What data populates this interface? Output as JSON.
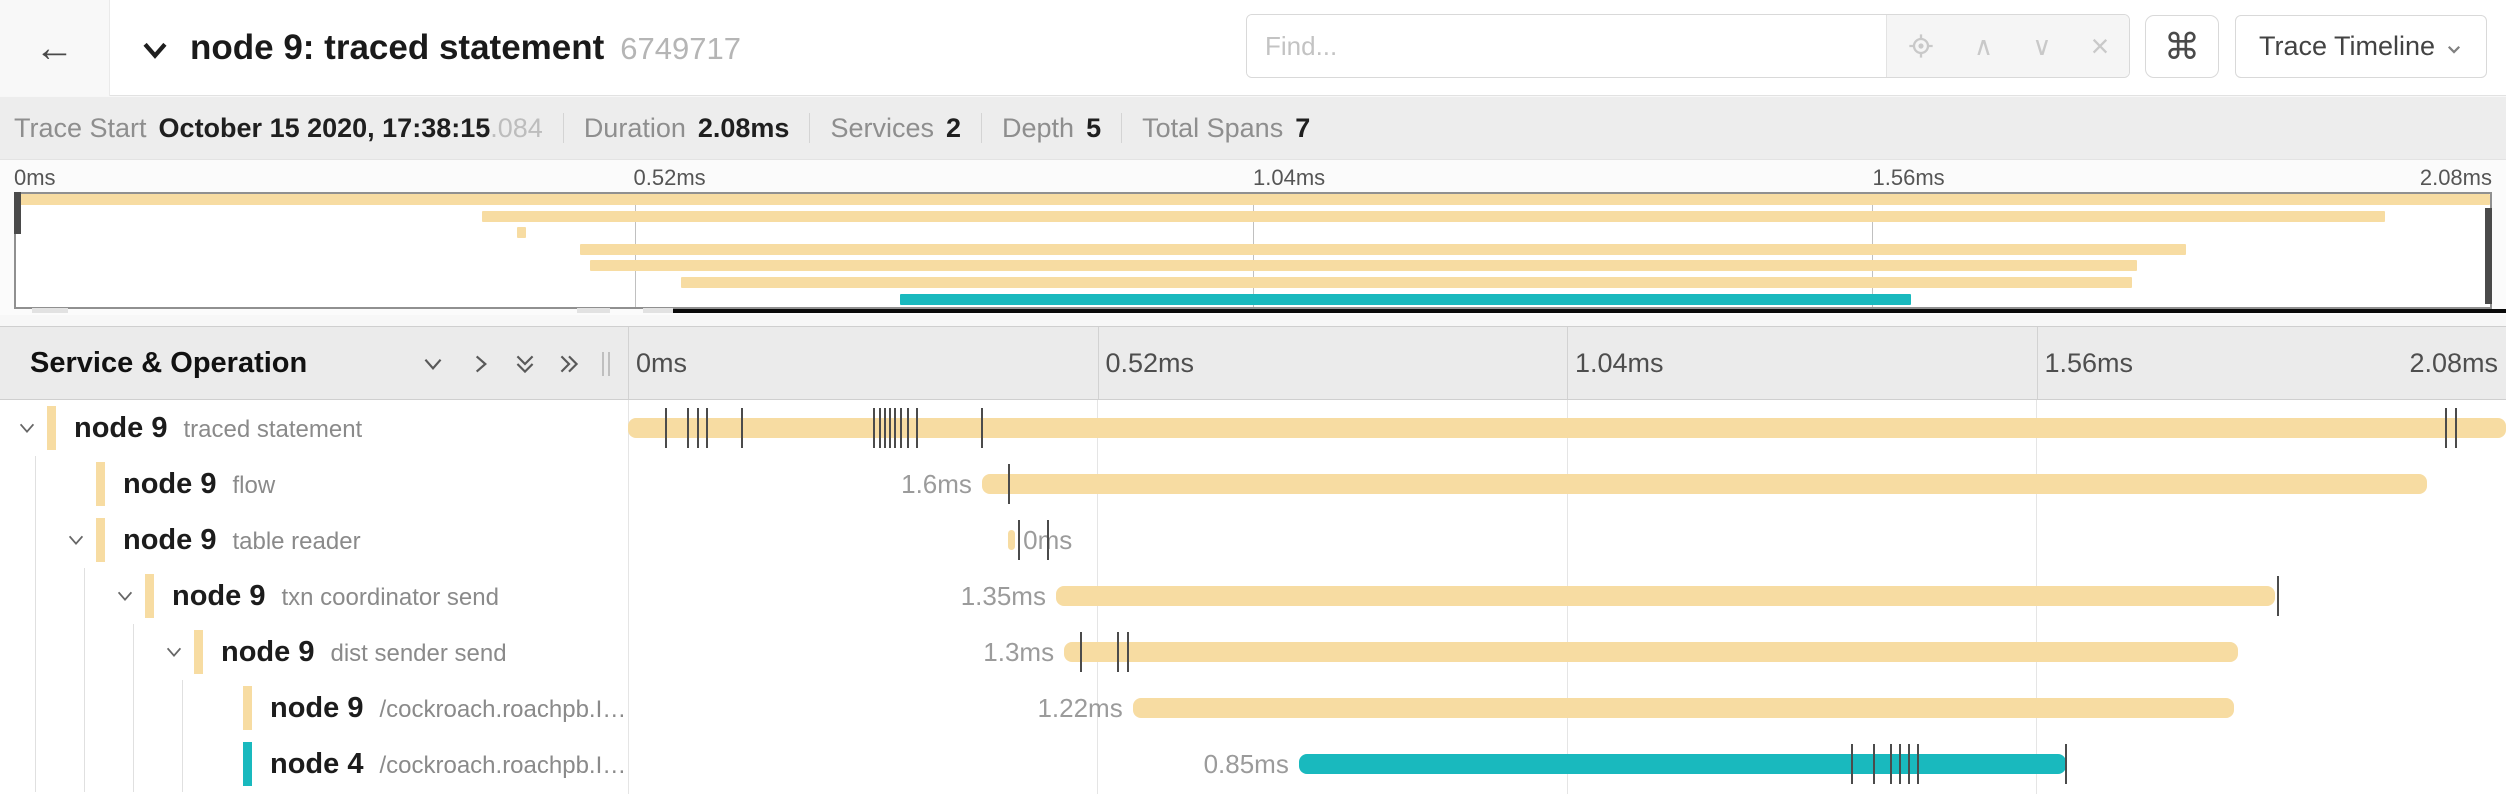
{
  "titlebar": {
    "title": "node 9: traced statement",
    "trace_id_short": "6749717",
    "find_placeholder": "Find...",
    "shortcuts_button_glyph": "⌘",
    "view_selector_label": "Trace Timeline",
    "icons": {
      "back": "←",
      "prev_match": "∧",
      "next_match": "∨",
      "clear_search": "×"
    }
  },
  "summary": {
    "items": [
      {
        "label": "Trace Start",
        "value": "October 15 2020, 17:38:15",
        "suffix": ".084"
      },
      {
        "label": "Duration",
        "value": "2.08ms",
        "suffix": ""
      },
      {
        "label": "Services",
        "value": "2",
        "suffix": ""
      },
      {
        "label": "Depth",
        "value": "5",
        "suffix": ""
      },
      {
        "label": "Total Spans",
        "value": "7",
        "suffix": ""
      }
    ]
  },
  "timeline": {
    "axis_labels": [
      "0ms",
      "0.52ms",
      "1.04ms",
      "1.56ms",
      "2.08ms"
    ],
    "total_duration_ms": 2.08
  },
  "table_header": {
    "left_title": "Service & Operation"
  },
  "colors": {
    "span_default": "#F7DCA2",
    "span_alt": "#19B9BE",
    "tick": "#4B4B4B"
  },
  "spans": [
    {
      "service": "node 9",
      "operation": "traced statement",
      "depth": 0,
      "expandable": true,
      "color_key": "default",
      "start_ms": 0,
      "duration_ms": 2.08,
      "duration_label": "",
      "label_side": "none",
      "ticks_pct": [
        1.97,
        3.14,
        3.67,
        4.15,
        6.02,
        13.04,
        13.37,
        13.63,
        13.9,
        14.16,
        14.48,
        14.86,
        15.33,
        18.8,
        96.75,
        97.28
      ]
    },
    {
      "service": "node 9",
      "operation": "flow",
      "depth": 1,
      "expandable": false,
      "color_key": "default",
      "start_ms": 0.392,
      "duration_ms": 1.6,
      "duration_label": "1.6ms",
      "label_side": "left",
      "ticks_pct": [
        20.23
      ]
    },
    {
      "service": "node 9",
      "operation": "table reader",
      "depth": 1,
      "expandable": true,
      "color_key": "default",
      "start_ms": 0.421,
      "duration_ms": 0.008,
      "duration_label": "0ms",
      "label_side": "right",
      "ticks_pct": [
        20.77,
        22.31
      ]
    },
    {
      "service": "node 9",
      "operation": "txn coordinator send",
      "depth": 2,
      "expandable": true,
      "color_key": "default",
      "start_ms": 0.474,
      "duration_ms": 1.35,
      "duration_label": "1.35ms",
      "label_side": "left",
      "ticks_pct": [
        87.81
      ]
    },
    {
      "service": "node 9",
      "operation": "dist sender send",
      "depth": 3,
      "expandable": true,
      "color_key": "default",
      "start_ms": 0.483,
      "duration_ms": 1.3,
      "duration_label": "1.3ms",
      "label_side": "left",
      "ticks_pct": [
        24.07,
        26.04,
        26.57
      ]
    },
    {
      "service": "node 9",
      "operation": "/cockroach.roachpb.I…",
      "depth": 4,
      "expandable": false,
      "color_key": "default",
      "start_ms": 0.559,
      "duration_ms": 1.22,
      "duration_label": "1.22ms",
      "label_side": "left",
      "ticks_pct": []
    },
    {
      "service": "node 4",
      "operation": "/cockroach.roachpb.I…",
      "depth": 4,
      "expandable": false,
      "color_key": "alt",
      "start_ms": 0.743,
      "duration_ms": 0.85,
      "duration_label": "0.85ms",
      "label_side": "left",
      "ticks_pct": [
        65.12,
        66.29,
        67.19,
        67.67,
        68.15,
        68.63,
        76.52
      ]
    }
  ]
}
